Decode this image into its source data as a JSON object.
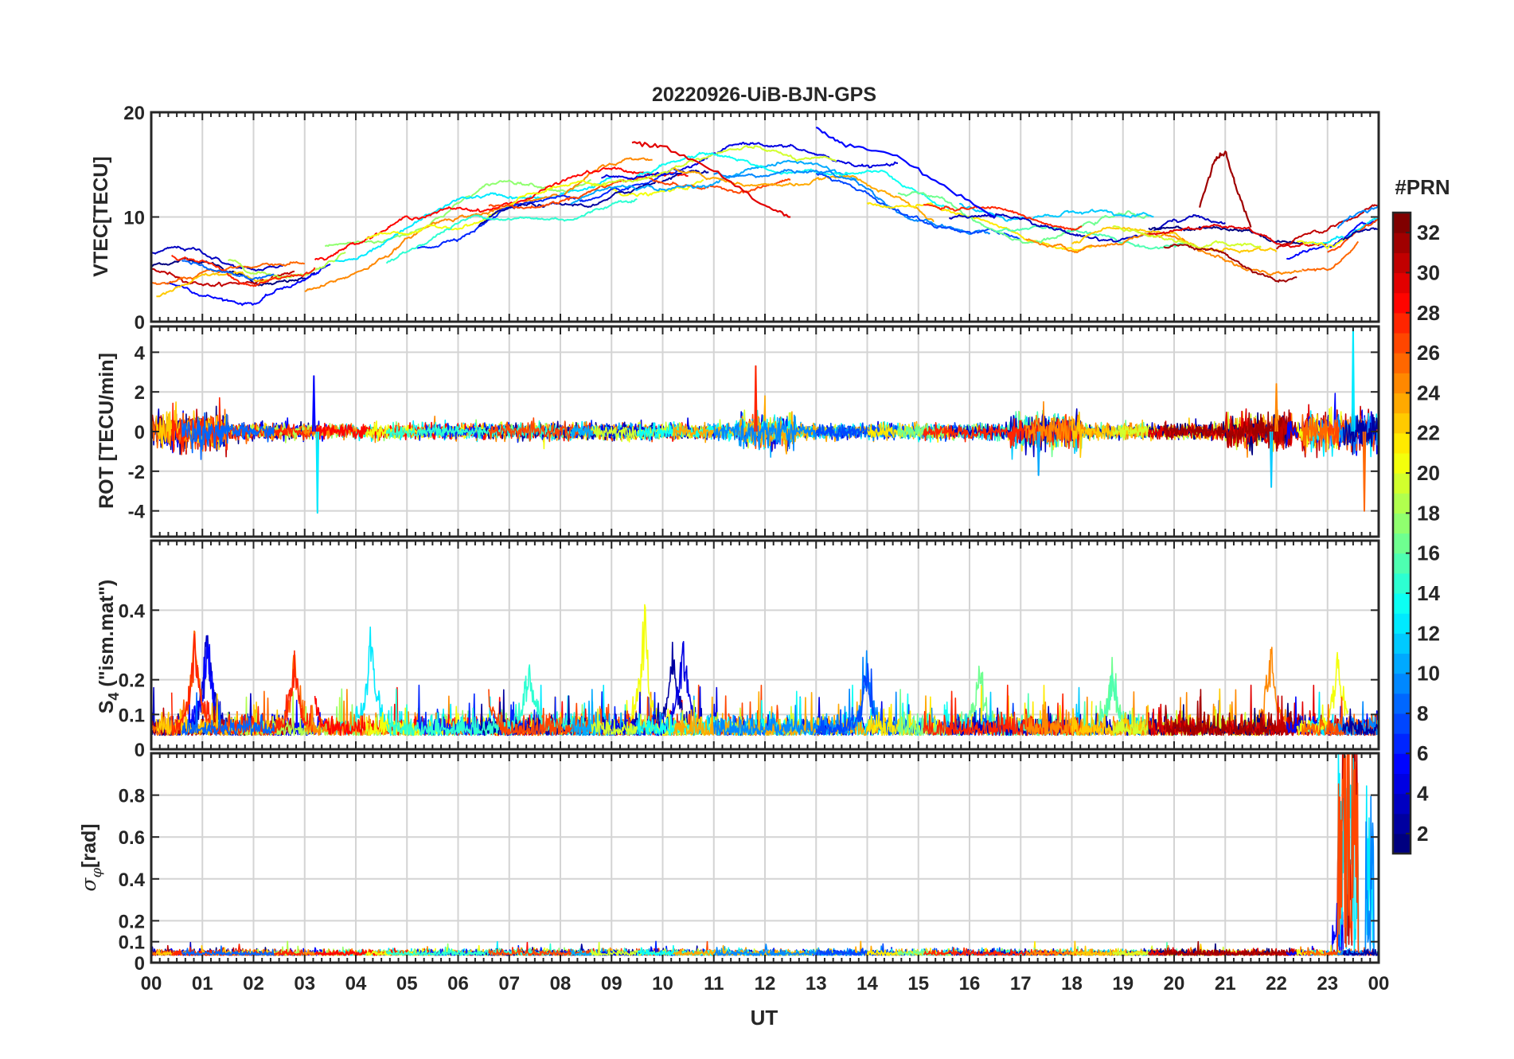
{
  "figure": {
    "title": "20220926-UiB-BJN-GPS",
    "xlabel": "UT",
    "x_ticks": [
      "00",
      "01",
      "02",
      "03",
      "04",
      "05",
      "06",
      "07",
      "08",
      "09",
      "10",
      "11",
      "12",
      "13",
      "14",
      "15",
      "16",
      "17",
      "18",
      "19",
      "20",
      "21",
      "22",
      "23",
      "00"
    ]
  },
  "colorbar": {
    "label": "#PRN",
    "colormap": "jet",
    "range": [
      1,
      32
    ],
    "ticks": [
      "2",
      "4",
      "6",
      "8",
      "10",
      "12",
      "14",
      "16",
      "18",
      "20",
      "22",
      "24",
      "26",
      "28",
      "30",
      "32"
    ],
    "tick_values": [
      2,
      4,
      6,
      8,
      10,
      12,
      14,
      16,
      18,
      20,
      22,
      24,
      26,
      28,
      30,
      32
    ]
  },
  "chart_data": [
    {
      "type": "line",
      "id": "vtec",
      "ylabel": "VTEC[TECU]",
      "xlim": [
        0,
        24
      ],
      "ylim": [
        0,
        20
      ],
      "yticks": [
        0,
        10,
        20
      ],
      "ytick_labels": [
        "0",
        "10",
        "20"
      ],
      "grid": true,
      "series_note_values": "one trace per GPS PRN; base diurnal level 4-5 TECU at 00-03 UT rising to about 14-15 TECU near 11-13 UT, falling to about 7-9 TECU after 17 UT",
      "series": [
        {
          "prn": 31,
          "x": [
            20.5,
            20.8,
            21.0,
            21.2,
            21.5
          ],
          "y": [
            11,
            15.5,
            16.2,
            13,
            9
          ]
        },
        {
          "prn": 29,
          "x": [
            9.4,
            10.0,
            11.0,
            12.0,
            12.5
          ],
          "y": [
            17.2,
            16.8,
            14.5,
            11,
            10
          ]
        },
        {
          "prn": 5,
          "x": [
            13.0,
            13.5,
            14.5,
            15.5,
            16.5
          ],
          "y": [
            18.5,
            17,
            16,
            13,
            10
          ]
        }
      ]
    },
    {
      "type": "line",
      "id": "rot",
      "ylabel": "ROT [TECU/min]",
      "xlim": [
        0,
        24
      ],
      "ylim": [
        -5.3,
        5.3
      ],
      "yticks": [
        -4,
        -2,
        0,
        2,
        4
      ],
      "ytick_labels": [
        "-4",
        "-2",
        "0",
        "2",
        "4"
      ],
      "grid": true,
      "series_note_values": "noisy traces around 0; spikes to about 2.8 and -4 near 03.2 UT, 3.3 near 11.8 UT, about 5 near 23.5 UT and -4 near 23.7 UT"
    },
    {
      "type": "line",
      "id": "s4",
      "ylabel": "S4 (\"ism.mat\")",
      "ylabel_main": "S",
      "ylabel_sub": "4",
      "ylabel_rest": " (\"ism.mat\")",
      "xlim": [
        0,
        24
      ],
      "ylim": [
        0,
        0.6
      ],
      "yticks": [
        0,
        0.1,
        0.2,
        0.4
      ],
      "ytick_labels": [
        "0",
        "0.1",
        "0.2",
        "0.4"
      ],
      "grid": true,
      "series_note_values": "background 0.02-0.08 with bursts reaching 0.3-0.44; highest near 09.6 UT at about 0.44"
    },
    {
      "type": "line",
      "id": "sigma_phi",
      "ylabel": "σφ[rad]",
      "ylabel_main": "σ",
      "ylabel_sub": "φ",
      "ylabel_rest": "[rad]",
      "xlim": [
        0,
        24
      ],
      "ylim": [
        0,
        1
      ],
      "yticks": [
        0,
        0.1,
        0.2,
        0.4,
        0.6,
        0.8
      ],
      "ytick_labels": [
        "0",
        "0.1",
        "0.2",
        "0.4",
        "0.6",
        "0.8"
      ],
      "grid": true,
      "series_note_values": "background about 0.03-0.06; spike above 1.0 near 23.3-23.5 UT and about 0.8 near 23.8 UT"
    }
  ]
}
